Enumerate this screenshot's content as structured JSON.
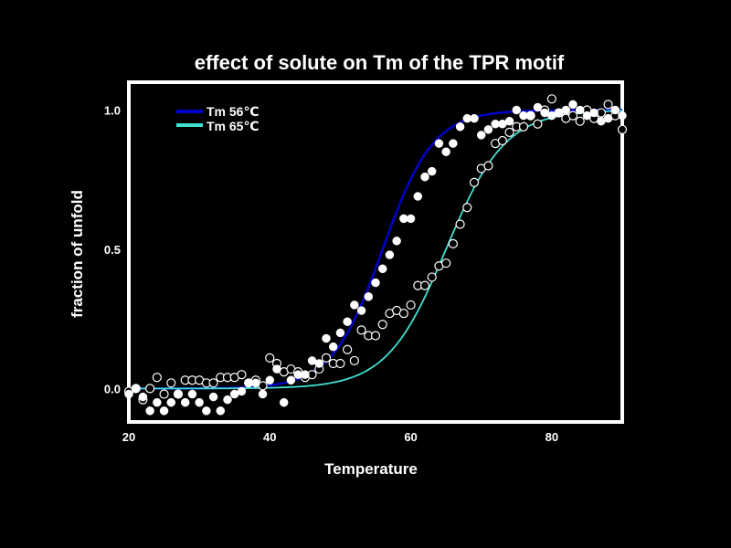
{
  "colors": {
    "background": "#000000",
    "frame": "#ffffff",
    "series_56": "#0000cc",
    "series_65": "#40e0d0",
    "marker_fill_56": "#ffffff",
    "marker_stroke_65": "#ffffff"
  },
  "chart_data": {
    "type": "scatter",
    "title": "effect of solute on Tm of the TPR motif",
    "xlabel": "Temperature",
    "ylabel": "fraction of unfold",
    "xlim": [
      20,
      90
    ],
    "ylim": [
      -0.12,
      1.1
    ],
    "xticks": [
      "20",
      "40",
      "60",
      "80"
    ],
    "xtick_values": [
      20,
      40,
      60,
      80
    ],
    "yticks": [
      "0.0",
      "0.5",
      "1.0"
    ],
    "ytick_values": [
      0,
      0.5,
      1.0
    ],
    "legend_position": "top-left",
    "series": [
      {
        "name": "Tm 56℃",
        "tm": 56,
        "slope": 3.6,
        "marker": "filled-circle",
        "x": [
          20,
          21,
          22,
          23,
          24,
          25,
          26,
          27,
          28,
          29,
          30,
          31,
          32,
          33,
          34,
          35,
          36,
          37,
          38,
          39,
          40,
          41,
          42,
          43,
          44,
          45,
          46,
          47,
          48,
          49,
          50,
          51,
          52,
          53,
          54,
          55,
          56,
          57,
          58,
          59,
          60,
          61,
          62,
          63,
          64,
          65,
          66,
          67,
          68,
          69,
          70,
          71,
          72,
          73,
          74,
          75,
          76,
          77,
          78,
          79,
          80,
          81,
          82,
          83,
          84,
          85,
          86,
          87,
          88,
          89,
          90
        ],
        "y": [
          -0.02,
          0.0,
          -0.03,
          -0.08,
          -0.05,
          -0.08,
          -0.05,
          -0.02,
          -0.05,
          -0.02,
          -0.05,
          -0.08,
          -0.03,
          -0.08,
          -0.04,
          -0.02,
          -0.01,
          0.02,
          0.02,
          -0.02,
          0.03,
          0.07,
          -0.05,
          0.03,
          0.05,
          0.05,
          0.1,
          0.09,
          0.18,
          0.15,
          0.2,
          0.24,
          0.3,
          0.28,
          0.33,
          0.38,
          0.43,
          0.48,
          0.53,
          0.61,
          0.61,
          0.69,
          0.76,
          0.78,
          0.88,
          0.85,
          0.88,
          0.94,
          0.97,
          0.97,
          0.91,
          0.93,
          0.95,
          0.95,
          0.96,
          1.0,
          0.98,
          0.98,
          1.01,
          0.99,
          0.98,
          0.99,
          1.0,
          1.02,
          1.0,
          0.98,
          0.99,
          0.96,
          0.97,
          1.0,
          0.98
        ]
      },
      {
        "name": "Tm 65℃",
        "tm": 65,
        "slope": 4.2,
        "marker": "open-circle",
        "x": [
          20,
          21,
          22,
          23,
          24,
          25,
          26,
          27,
          28,
          29,
          30,
          31,
          32,
          33,
          34,
          35,
          36,
          37,
          38,
          39,
          40,
          41,
          42,
          43,
          44,
          45,
          46,
          47,
          48,
          49,
          50,
          51,
          52,
          53,
          54,
          55,
          56,
          57,
          58,
          59,
          60,
          61,
          62,
          63,
          64,
          65,
          66,
          67,
          68,
          69,
          70,
          71,
          72,
          73,
          74,
          75,
          76,
          77,
          78,
          79,
          80,
          81,
          82,
          83,
          84,
          85,
          86,
          87,
          88,
          89,
          90
        ],
        "y": [
          -0.01,
          0.0,
          -0.04,
          0.0,
          0.04,
          -0.02,
          0.02,
          -0.02,
          0.03,
          0.03,
          0.03,
          0.02,
          0.02,
          0.04,
          0.04,
          0.04,
          0.05,
          0.02,
          0.03,
          0.01,
          0.11,
          0.09,
          0.06,
          0.07,
          0.06,
          0.04,
          0.05,
          0.07,
          0.11,
          0.09,
          0.09,
          0.14,
          0.1,
          0.21,
          0.19,
          0.19,
          0.23,
          0.27,
          0.28,
          0.27,
          0.3,
          0.37,
          0.37,
          0.4,
          0.44,
          0.45,
          0.52,
          0.59,
          0.65,
          0.74,
          0.79,
          0.8,
          0.88,
          0.89,
          0.92,
          0.94,
          0.94,
          0.98,
          0.95,
          1.0,
          1.04,
          0.99,
          0.97,
          0.98,
          0.96,
          1.0,
          0.97,
          0.99,
          1.02,
          0.98,
          0.93
        ]
      }
    ]
  }
}
